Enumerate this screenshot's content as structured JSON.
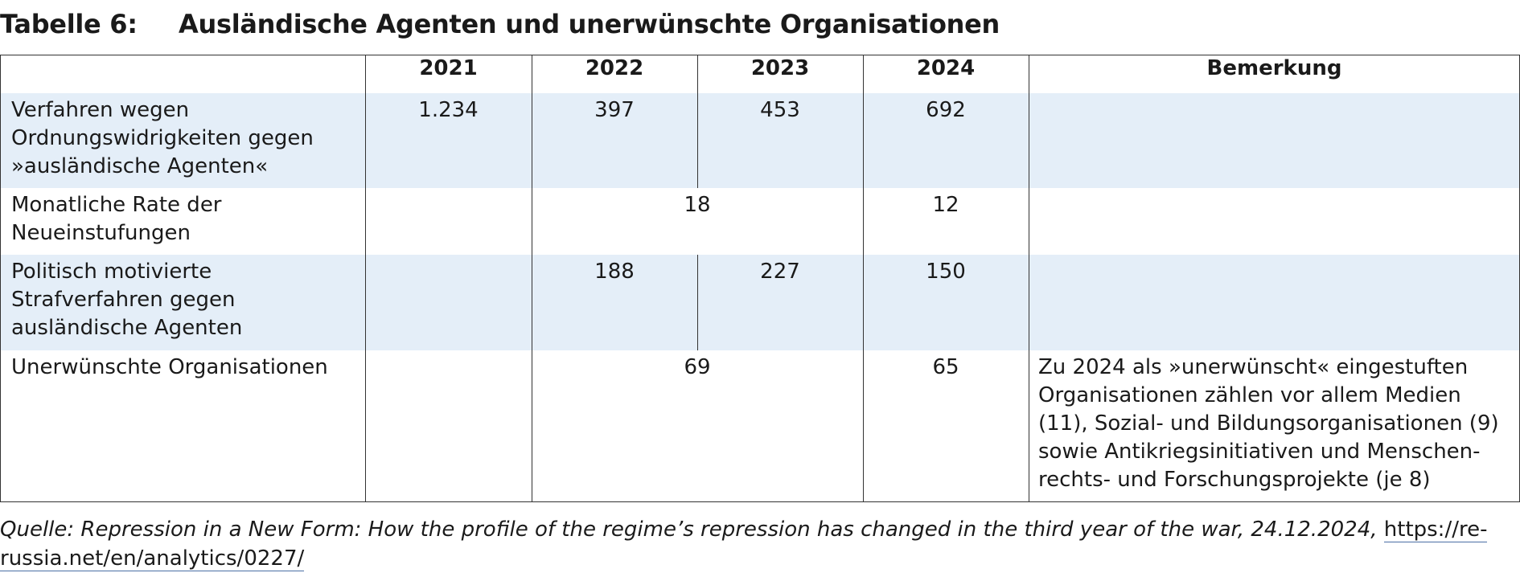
{
  "title": {
    "label": "Tabelle 6:",
    "text": "Ausländische Agenten und unerwünschte Organisationen"
  },
  "table": {
    "headers": [
      "",
      "2021",
      "2022",
      "2023",
      "2024",
      "Bemerkung"
    ],
    "rows": [
      {
        "label": "Verfahren wegen Ordnungswidrigkeiten gegen »ausländische Agenten«",
        "v2021": "1.234",
        "v2022": "397",
        "v2023": "453",
        "v2024": "692",
        "remark": ""
      },
      {
        "label": "Monatliche Rate der Neueinstufungen",
        "v2022_2023": "18",
        "v2024": "12",
        "remark": ""
      },
      {
        "label": "Politisch motivierte Strafverfahren gegen ausländische Agenten",
        "v2021": "",
        "v2022": "188",
        "v2023": "227",
        "v2024": "150",
        "remark": ""
      },
      {
        "label": "Unerwünschte Organisationen",
        "v2022_2023": "69",
        "v2024": "65",
        "remark": "Zu 2024 als »unerwünscht« eingestuften Organisationen zählen vor allem Medien (11), Sozial- und Bildungsorganisationen (9) sowie Antikriegsinitiativen und Menschen-rechts- und Forschungsprojekte (je 8)"
      }
    ]
  },
  "source": {
    "text": "Quelle: Repression in a New Form: How the profile of the regime’s repression has changed in the third year of the war, 24.12.2024,",
    "link": "https://re-russia.net/en/analytics/0227/"
  }
}
